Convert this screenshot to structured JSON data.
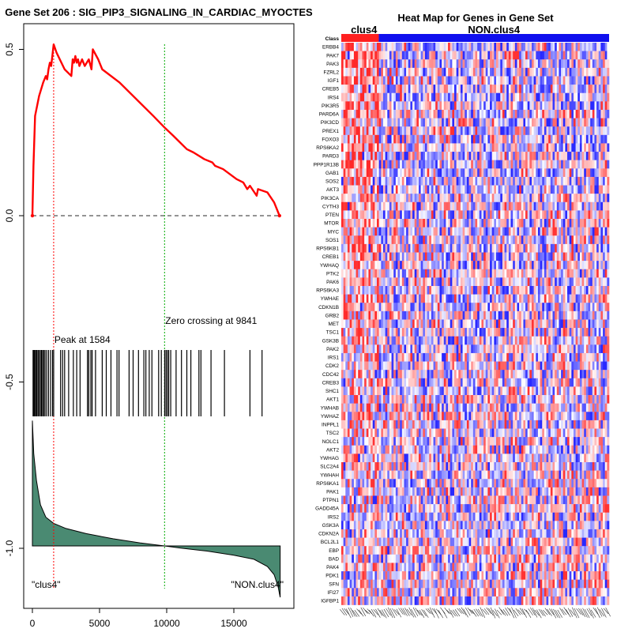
{
  "chart_data": [
    {
      "type": "line",
      "title": "Gene Set  206 : SIG_PIP3_SIGNALING_IN_CARDIAC_MYOCTES",
      "xlabel": "",
      "ylabel": "",
      "xlim": [
        -500,
        18700
      ],
      "ylim": [
        -1.17,
        0.62
      ],
      "xticks": [
        0,
        5000,
        10000,
        15000
      ],
      "xtick_labels": [
        "0",
        "5000",
        "10000",
        "15000"
      ],
      "yticks": [
        0.5,
        0.0,
        -0.5,
        -1.0
      ],
      "ytick_labels": [
        "0.5",
        "0.0",
        "-0.5",
        "-1.0"
      ],
      "series": [
        {
          "name": "Running enrichment score",
          "color": "#ff0000",
          "x": [
            0,
            80,
            200,
            500,
            800,
            1000,
            1100,
            1200,
            1300,
            1400,
            1584,
            1800,
            2400,
            2900,
            3000,
            3100,
            3200,
            3300,
            3400,
            3500,
            3700,
            3900,
            4200,
            4400,
            4500,
            4900,
            5200,
            6500,
            8000,
            9000,
            9841,
            10500,
            11500,
            12000,
            12800,
            13400,
            13600,
            14200,
            15200,
            15700,
            16000,
            16200,
            16700,
            16800,
            17500,
            18000,
            18400
          ],
          "y": [
            0.0,
            0.15,
            0.3,
            0.36,
            0.4,
            0.42,
            0.41,
            0.44,
            0.46,
            0.45,
            0.515,
            0.49,
            0.44,
            0.42,
            0.47,
            0.46,
            0.48,
            0.46,
            0.47,
            0.45,
            0.47,
            0.45,
            0.47,
            0.44,
            0.5,
            0.47,
            0.44,
            0.4,
            0.34,
            0.3,
            0.265,
            0.24,
            0.2,
            0.19,
            0.17,
            0.16,
            0.15,
            0.14,
            0.11,
            0.1,
            0.08,
            0.09,
            0.06,
            0.08,
            0.07,
            0.04,
            0.0
          ]
        }
      ],
      "baseline": 0.0,
      "hit_positions": [
        50,
        110,
        170,
        250,
        330,
        420,
        500,
        600,
        680,
        760,
        850,
        940,
        1060,
        1200,
        1350,
        1500,
        1584,
        2100,
        2250,
        2400,
        2700,
        3050,
        3300,
        3550,
        4100,
        4200,
        4350,
        4450,
        4700,
        5200,
        5500,
        5850,
        6300,
        6450,
        7200,
        7500,
        7900,
        8300,
        8450,
        8700,
        8900,
        9400,
        9600,
        9850,
        9950,
        10050,
        10150,
        10300,
        10700,
        11100,
        11500,
        11800,
        12400,
        12550,
        13300,
        14300,
        16200,
        17100
      ],
      "ranked_list_metric": {
        "x": [
          0,
          100,
          300,
          600,
          1000,
          1584,
          2500,
          4000,
          6000,
          8000,
          9841,
          11000,
          13000,
          15000,
          16500,
          17500,
          18000,
          18300,
          18450
        ],
        "y": [
          0.61,
          0.45,
          0.32,
          0.2,
          0.14,
          0.11,
          0.085,
          0.06,
          0.035,
          0.015,
          0.0,
          -0.01,
          -0.025,
          -0.045,
          -0.065,
          -0.1,
          -0.14,
          -0.2,
          -0.25
        ],
        "fill_color": "#4a8a72"
      },
      "annotations": [
        {
          "text": "Peak at 1584",
          "x": 1584,
          "line_color": "#ff0000"
        },
        {
          "text": "Zero crossing at 9841",
          "x": 9841,
          "line_color": "#00aa00"
        },
        {
          "text": "\"clus4\""
        },
        {
          "text": "\"NON.clus4\""
        }
      ]
    },
    {
      "type": "heatmap",
      "title": "Heat Map for Genes in Gene Set",
      "class_row_label": "Class",
      "classes": [
        {
          "name": "clus4",
          "color": "#ff2020",
          "fraction": 0.14
        },
        {
          "name": "NON.clus4",
          "color": "#1010ee",
          "fraction": 0.86
        }
      ],
      "n_columns": 128,
      "color_scale": {
        "low": "#0000ff",
        "mid": "#ffffff",
        "high": "#ff0000"
      },
      "genes": [
        "ERBB4",
        "PAK7",
        "PAK3",
        "FZRL2",
        "IGF1",
        "CREB5",
        "IRS4",
        "PIK3R5",
        "PARD6A",
        "PIK3CD",
        "PREX1",
        "FOXO3",
        "RPS6KA2",
        "PARD3",
        "PPP1R13B",
        "GAB1",
        "SOS2",
        "AKT3",
        "PIK3CA",
        "CYTH3",
        "PTEN",
        "MTOR",
        "MYC",
        "SOS1",
        "RPS6KB1",
        "CREB1",
        "YWHAQ",
        "PTK2",
        "PAK6",
        "RPS6KA3",
        "YWHAE",
        "CDKN1B",
        "GRB2",
        "MET",
        "TSC1",
        "GSK3B",
        "PAK2",
        "IRS1",
        "CDK2",
        "CDC42",
        "CREB3",
        "SHC1",
        "AKT1",
        "YWHAB",
        "YWHAZ",
        "INPPL1",
        "TSC2",
        "NOLC1",
        "AKT2",
        "YWHAG",
        "SLC2A4",
        "YWHAH",
        "RPS6KA1",
        "PAK1",
        "PTPN1",
        "GADD45A",
        "IRS2",
        "GSK3A",
        "CDKN2A",
        "BCL2L1",
        "EBP",
        "BAD",
        "PAK4",
        "PDK1",
        "SFN",
        "IFI27",
        "IGFBP1"
      ]
    }
  ]
}
